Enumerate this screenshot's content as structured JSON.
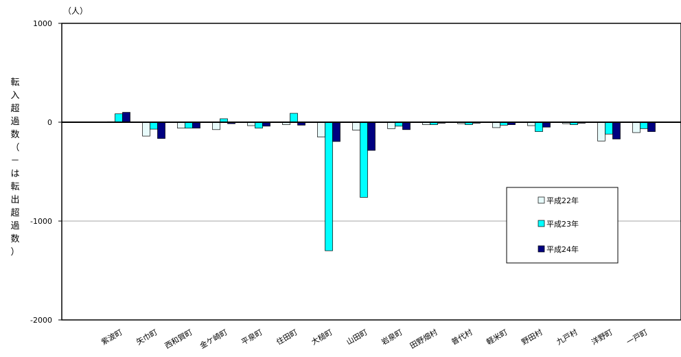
{
  "chart_data": {
    "type": "bar",
    "unit_label": "（人）",
    "ylabel": "転入超過数（－は転出超過数）",
    "ylim": [
      -2000,
      1000
    ],
    "yticks": [
      1000,
      0,
      -1000,
      -2000
    ],
    "ytick_labels": [
      "1000",
      "0",
      "-1000",
      "-2000"
    ],
    "grid": "horizontal at -1000",
    "legend_position": "right",
    "categories": [
      "紫波町",
      "矢巾町",
      "西和賀町",
      "金ケ崎町",
      "平泉町",
      "住田町",
      "大槌町",
      "山田町",
      "岩泉町",
      "田野畑村",
      "普代村",
      "軽米町",
      "野田村",
      "九戸村",
      "洋野町",
      "一戸町"
    ],
    "series": [
      {
        "name": "平成22年",
        "color": "#e8fbfb",
        "values": [
          5,
          -140,
          -60,
          -75,
          -35,
          -25,
          -150,
          -80,
          -65,
          -25,
          -15,
          -55,
          -35,
          -15,
          -190,
          -105
        ]
      },
      {
        "name": "平成23年",
        "color": "#00ffff",
        "values": [
          85,
          -70,
          -60,
          35,
          -60,
          90,
          -1300,
          -760,
          -40,
          -25,
          -25,
          -30,
          -95,
          -25,
          -120,
          -65
        ]
      },
      {
        "name": "平成24年",
        "color": "#000080",
        "values": [
          100,
          -165,
          -60,
          -15,
          -40,
          -30,
          -195,
          -285,
          -75,
          -10,
          -10,
          -25,
          -50,
          -10,
          -170,
          -95
        ]
      }
    ]
  }
}
